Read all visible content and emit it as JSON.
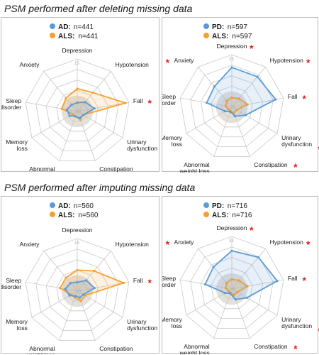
{
  "sections": [
    {
      "title": "PSM performed after deleting missing data"
    },
    {
      "title": "PSM performed after imputing missing data"
    }
  ],
  "colors": {
    "blue": "#5b9bd5",
    "orange": "#f5a031",
    "star": "#e02020",
    "grid": "#c8c8c8",
    "fill_center": "#e4e0dc"
  },
  "chart_data": [
    {
      "type": "radar",
      "axes": [
        "Depression",
        "Hypotension",
        "Fall",
        "Urinary dysfunction",
        "Constipation",
        "Abnormal weight loss",
        "Memory loss",
        "Sleep disorder",
        "Anxiety"
      ],
      "rmax": 15,
      "tick_labels": [
        "0",
        "15"
      ],
      "stars": [
        false,
        false,
        true,
        false,
        false,
        false,
        false,
        false,
        false
      ],
      "series": [
        {
          "key": "AD:",
          "n": "n=441",
          "color": "#5b9bd5",
          "values": [
            2.5,
            3.5,
            5,
            2,
            2,
            1.5,
            2.5,
            3,
            2.5
          ]
        },
        {
          "key": "ALS:",
          "n": "n=441",
          "color": "#f5a031",
          "values": [
            6.5,
            7,
            14,
            2,
            2.5,
            1.5,
            1.5,
            4.5,
            5
          ]
        }
      ]
    },
    {
      "type": "radar",
      "axes": [
        "Depression",
        "Hypotension",
        "Fall",
        "Urinary dysfunction",
        "Constipation",
        "Abnormal weight loss",
        "Memory loss",
        "Sleep disorder",
        "Anxiety"
      ],
      "rmax": 33,
      "tick_labels": [
        "0",
        "33"
      ],
      "stars": [
        true,
        true,
        true,
        true,
        true,
        false,
        false,
        true,
        true
      ],
      "series": [
        {
          "key": "PD:",
          "n": "n=597",
          "color": "#5b9bd5",
          "values": [
            25,
            25,
            28,
            10,
            6,
            3,
            5,
            16,
            17
          ]
        },
        {
          "key": "ALS:",
          "n": "n=597",
          "color": "#f5a031",
          "values": [
            6,
            7,
            10,
            3.5,
            4,
            2.5,
            2.5,
            4,
            5
          ]
        }
      ]
    },
    {
      "type": "radar",
      "axes": [
        "Depression",
        "Hypotension",
        "Fall",
        "Urinary dysfunction",
        "Constipation",
        "Abnormal weight loss",
        "Memory loss",
        "Sleep disorder",
        "Anxiety"
      ],
      "rmax": 15,
      "tick_labels": [
        "0",
        "15"
      ],
      "stars": [
        false,
        false,
        true,
        false,
        false,
        false,
        false,
        false,
        false
      ],
      "series": [
        {
          "key": "AD:",
          "n": "n=560",
          "color": "#5b9bd5",
          "values": [
            2.5,
            4,
            5,
            2,
            2,
            1.5,
            2.5,
            3.5,
            3
          ]
        },
        {
          "key": "ALS:",
          "n": "n=560",
          "color": "#f5a031",
          "values": [
            6,
            7.5,
            13.5,
            2.5,
            3,
            2,
            2,
            5,
            5
          ]
        }
      ]
    },
    {
      "type": "radar",
      "axes": [
        "Depression",
        "Hypotension",
        "Fall",
        "Urinary dysfunction",
        "Constipation",
        "Abnormal weight loss",
        "Memory loss",
        "Sleep disorder",
        "Anxiety"
      ],
      "rmax": 33,
      "tick_labels": [
        "0",
        "33"
      ],
      "stars": [
        true,
        true,
        true,
        true,
        true,
        false,
        false,
        true,
        true
      ],
      "series": [
        {
          "key": "PD:",
          "n": "n=716",
          "color": "#5b9bd5",
          "values": [
            24,
            26,
            29,
            11,
            7,
            3,
            5,
            17,
            18
          ]
        },
        {
          "key": "ALS:",
          "n": "n=716",
          "color": "#f5a031",
          "values": [
            6,
            7,
            10,
            4,
            4,
            2.5,
            2.5,
            4,
            5
          ]
        }
      ]
    }
  ]
}
